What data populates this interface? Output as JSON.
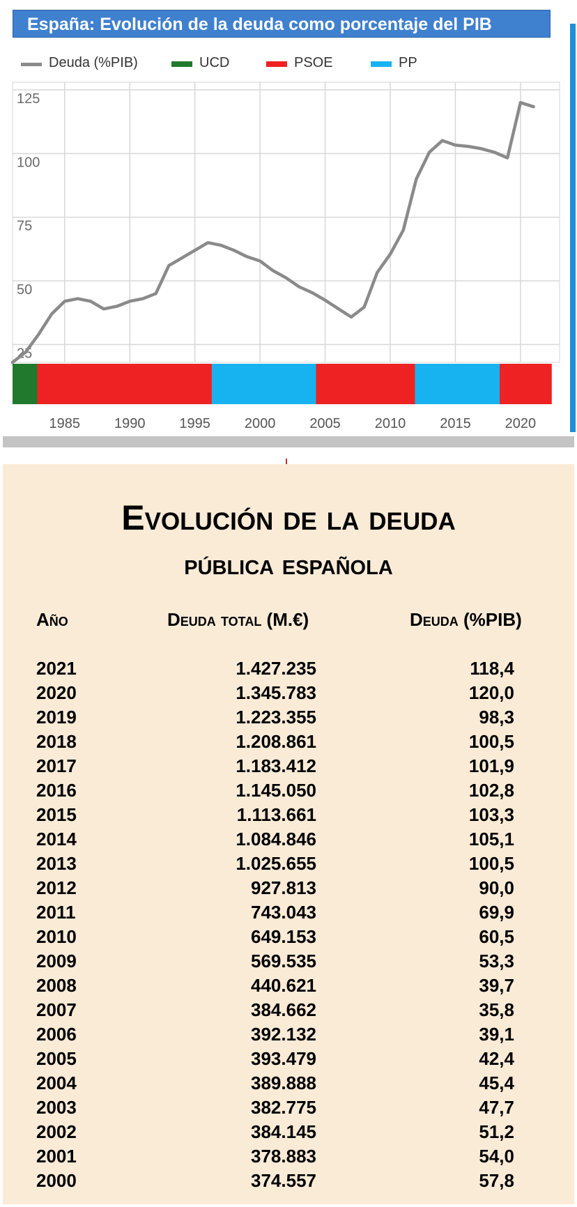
{
  "chart_title": "España: Evolución de la deuda como porcentaje del PIB",
  "legend": [
    {
      "label": "Deuda (%PIB)",
      "color": "#8a8a8a",
      "kind": "line"
    },
    {
      "label": "UCD",
      "color": "#1f7a2e",
      "kind": "swatch"
    },
    {
      "label": "PSOE",
      "color": "#ee2222",
      "kind": "swatch"
    },
    {
      "label": "PP",
      "color": "#17b2f0",
      "kind": "swatch"
    }
  ],
  "chart_data": {
    "type": "line",
    "title": "España: Evolución de la deuda como porcentaje del PIB",
    "xlabel": "",
    "ylabel": "",
    "xlim": [
      1981,
      2023
    ],
    "ylim": [
      18,
      128
    ],
    "x_ticks": [
      1985,
      1990,
      1995,
      2000,
      2005,
      2010,
      2015,
      2020
    ],
    "y_ticks": [
      25,
      50,
      75,
      100,
      125
    ],
    "grid": true,
    "legend_position": "top",
    "series": [
      {
        "name": "Deuda (%PIB)",
        "color": "#8a8a8a",
        "x": [
          1981,
          1982,
          1983,
          1984,
          1985,
          1986,
          1987,
          1988,
          1989,
          1990,
          1991,
          1992,
          1993,
          1994,
          1995,
          1996,
          1997,
          1998,
          1999,
          2000,
          2001,
          2002,
          2003,
          2004,
          2005,
          2006,
          2007,
          2008,
          2009,
          2010,
          2011,
          2012,
          2013,
          2014,
          2015,
          2016,
          2017,
          2018,
          2019,
          2020,
          2021
        ],
        "y": [
          18,
          22,
          29,
          37,
          42,
          43,
          42,
          39,
          40,
          42,
          43,
          45,
          56,
          59,
          62,
          65,
          64,
          62,
          59.5,
          57.8,
          54.0,
          51.2,
          47.7,
          45.4,
          42.4,
          39.1,
          35.8,
          39.7,
          53.3,
          60.5,
          69.9,
          90.0,
          100.5,
          105.1,
          103.3,
          102.8,
          101.9,
          100.5,
          98.3,
          120.0,
          118.4
        ]
      }
    ],
    "government_periods": [
      {
        "party": "UCD",
        "start": 1981,
        "end": 1982.9,
        "color": "#1f7a2e"
      },
      {
        "party": "PSOE",
        "start": 1982.9,
        "end": 1996.3,
        "color": "#ee2222"
      },
      {
        "party": "PP",
        "start": 1996.3,
        "end": 2004.3,
        "color": "#17b2f0"
      },
      {
        "party": "PSOE",
        "start": 2004.3,
        "end": 2011.9,
        "color": "#ee2222"
      },
      {
        "party": "PP",
        "start": 2011.9,
        "end": 2018.4,
        "color": "#17b2f0"
      },
      {
        "party": "PSOE",
        "start": 2018.4,
        "end": 2022.4,
        "color": "#ee2222"
      }
    ]
  },
  "table": {
    "title_line1": "Evolución de la deuda",
    "title_line2": "pública española",
    "col_year": "Año",
    "col_total": "Deuda total (M.€)",
    "col_pib": "Deuda (%PIB)",
    "rows": [
      {
        "year": "2021",
        "total": "1.427.235",
        "pib": "118,4"
      },
      {
        "year": "2020",
        "total": "1.345.783",
        "pib": "120,0"
      },
      {
        "year": "2019",
        "total": "1.223.355",
        "pib": "98,3"
      },
      {
        "year": "2018",
        "total": "1.208.861",
        "pib": "100,5"
      },
      {
        "year": "2017",
        "total": "1.183.412",
        "pib": "101,9"
      },
      {
        "year": "2016",
        "total": "1.145.050",
        "pib": "102,8"
      },
      {
        "year": "2015",
        "total": "1.113.661",
        "pib": "103,3"
      },
      {
        "year": "2014",
        "total": "1.084.846",
        "pib": "105,1"
      },
      {
        "year": "2013",
        "total": "1.025.655",
        "pib": "100,5"
      },
      {
        "year": "2012",
        "total": "927.813",
        "pib": "90,0"
      },
      {
        "year": "2011",
        "total": "743.043",
        "pib": "69,9"
      },
      {
        "year": "2010",
        "total": "649.153",
        "pib": "60,5"
      },
      {
        "year": "2009",
        "total": "569.535",
        "pib": "53,3"
      },
      {
        "year": "2008",
        "total": "440.621",
        "pib": "39,7"
      },
      {
        "year": "2007",
        "total": "384.662",
        "pib": "35,8"
      },
      {
        "year": "2006",
        "total": "392.132",
        "pib": "39,1"
      },
      {
        "year": "2005",
        "total": "393.479",
        "pib": "42,4"
      },
      {
        "year": "2004",
        "total": "389.888",
        "pib": "45,4"
      },
      {
        "year": "2003",
        "total": "382.775",
        "pib": "47,7"
      },
      {
        "year": "2002",
        "total": "384.145",
        "pib": "51,2"
      },
      {
        "year": "2001",
        "total": "378.883",
        "pib": "54,0"
      },
      {
        "year": "2000",
        "total": "374.557",
        "pib": "57,8"
      }
    ]
  }
}
